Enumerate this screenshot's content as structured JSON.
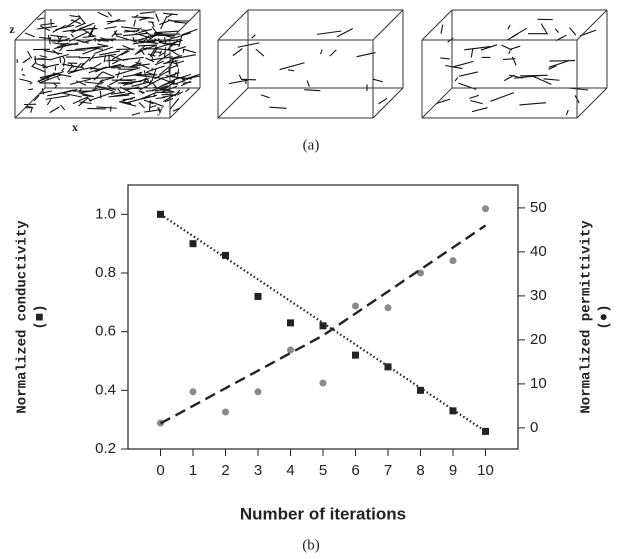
{
  "panel_a": {
    "axis_labels": {
      "z": "z",
      "x": "x",
      "y": "y"
    },
    "caption": "(a)"
  },
  "chart_data": {
    "type": "scatter",
    "caption": "(b)",
    "x_label": "Number of iterations",
    "y_label": [
      "Normalized conductivity",
      "(■)"
    ],
    "y2_label": [
      "Normalized permittivity",
      "(●)"
    ],
    "xlim": [
      -1,
      11
    ],
    "xticks": [
      0,
      1,
      2,
      3,
      4,
      5,
      6,
      7,
      8,
      9,
      10
    ],
    "ylim": [
      0.2,
      1.1
    ],
    "yticks": [
      {
        "value": 0.2,
        "label": "0.2"
      },
      {
        "value": 0.4,
        "label": "0.4"
      },
      {
        "value": 0.6,
        "label": "0.6"
      },
      {
        "value": 0.8,
        "label": "0.8"
      },
      {
        "value": 1,
        "label": "1.0"
      }
    ],
    "y2lim": [
      -4.8,
      55.2
    ],
    "y2ticks": [
      0,
      10,
      20,
      30,
      40,
      50
    ],
    "series": [
      {
        "type": "scatter",
        "marker": "square",
        "color": "#222222",
        "axis": "y",
        "x": [
          0,
          1,
          2,
          3,
          4,
          5,
          6,
          7,
          8,
          9,
          10
        ],
        "values": [
          1.0,
          0.9,
          0.86,
          0.72,
          0.63,
          0.62,
          0.52,
          0.48,
          0.4,
          0.33,
          0.26
        ]
      },
      {
        "type": "scatter",
        "marker": "circle",
        "color": "#8a8a8a",
        "axis": "y2",
        "x": [
          0,
          1,
          2,
          3,
          4,
          5,
          6,
          7,
          8,
          9,
          10
        ],
        "values": [
          1.1,
          8.2,
          3.6,
          8.2,
          17.7,
          10.2,
          27.7,
          27.3,
          35.2,
          38,
          49.8
        ]
      },
      {
        "type": "line",
        "style": "dotted",
        "color": "#222222",
        "axis": "y",
        "x": [
          0,
          10
        ],
        "values": [
          1.0,
          0.26
        ]
      },
      {
        "type": "line",
        "style": "dashed",
        "color": "#222222",
        "axis": "y2",
        "x": [
          0,
          5,
          10
        ],
        "values": [
          1,
          21,
          46
        ]
      }
    ]
  }
}
